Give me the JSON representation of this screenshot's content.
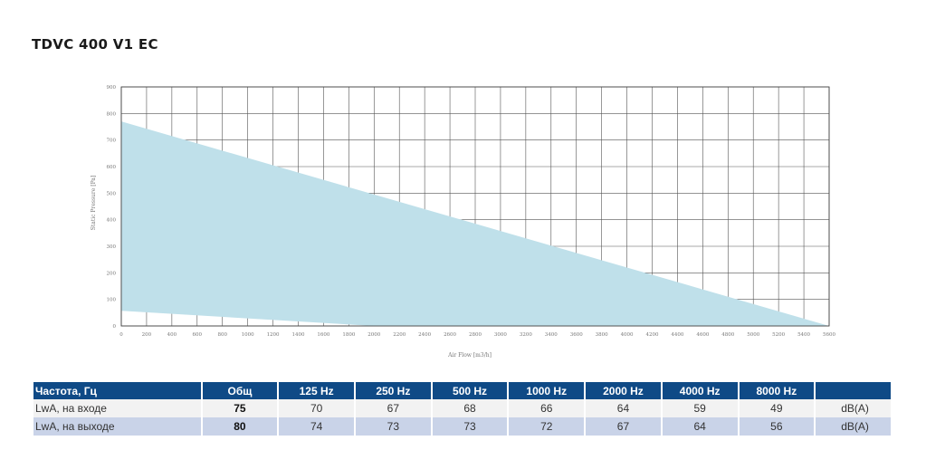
{
  "title": "TDVC 400 V1 EC",
  "chart_data": {
    "type": "area",
    "xlabel": "Air Flow [m3/h]",
    "ylabel": "Static Pressure [Pa]",
    "xlim": [
      0,
      5600
    ],
    "ylim": [
      0,
      900
    ],
    "x_ticks": [
      0,
      200,
      400,
      600,
      800,
      1000,
      1200,
      1400,
      1600,
      1800,
      2000,
      2200,
      2400,
      2600,
      2800,
      3000,
      3200,
      3400,
      3600,
      3800,
      4000,
      4200,
      4400,
      4600,
      4800,
      5000,
      5200,
      5400,
      5600
    ],
    "y_ticks": [
      0,
      100,
      200,
      300,
      400,
      500,
      600,
      700,
      800,
      900
    ],
    "grid": true,
    "fill_color": "#bfe0ea",
    "series": [
      {
        "role": "upper-boundary",
        "x": [
          0,
          5600
        ],
        "y": [
          770,
          0
        ]
      },
      {
        "role": "lower-boundary",
        "x": [
          0,
          2000,
          5600
        ],
        "y": [
          57,
          0,
          0
        ]
      }
    ]
  },
  "table": {
    "headers": [
      "Частота, Гц",
      "Общ",
      "125 Hz",
      "250 Hz",
      "500 Hz",
      "1000 Hz",
      "2000 Hz",
      "4000 Hz",
      "8000 Hz",
      ""
    ],
    "rows": [
      {
        "label": "LwA, на входе",
        "total": "75",
        "values": [
          "70",
          "67",
          "68",
          "66",
          "64",
          "59",
          "49"
        ],
        "unit": "dB(A)"
      },
      {
        "label": "LwA, на выходе",
        "total": "80",
        "values": [
          "74",
          "73",
          "73",
          "72",
          "67",
          "64",
          "56"
        ],
        "unit": "dB(A)"
      }
    ]
  }
}
